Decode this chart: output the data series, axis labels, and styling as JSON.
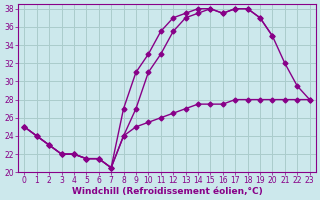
{
  "background_color": "#cce8ec",
  "grid_color": "#aacccc",
  "line_color": "#880088",
  "marker": "D",
  "markersize": 2.5,
  "linewidth": 1.0,
  "xlabel": "Windchill (Refroidissement éolien,°C)",
  "xlabel_fontsize": 6.5,
  "tick_fontsize": 5.5,
  "xlim": [
    -0.5,
    23.5
  ],
  "ylim": [
    20,
    38.5
  ],
  "yticks": [
    20,
    22,
    24,
    26,
    28,
    30,
    32,
    34,
    36,
    38
  ],
  "xticks": [
    0,
    1,
    2,
    3,
    4,
    5,
    6,
    7,
    8,
    9,
    10,
    11,
    12,
    13,
    14,
    15,
    16,
    17,
    18,
    19,
    20,
    21,
    22,
    23
  ],
  "line1_x": [
    0,
    1,
    2,
    3,
    4,
    5,
    6,
    7,
    8,
    9,
    10,
    11,
    12,
    13,
    14,
    15,
    16,
    17,
    18,
    19,
    20,
    21,
    22,
    23
  ],
  "line1_y": [
    25,
    24,
    23,
    22,
    22,
    21.5,
    21.5,
    20.5,
    24,
    25,
    25.5,
    26,
    26.5,
    27,
    27.5,
    27.5,
    27.5,
    28,
    28,
    28,
    28,
    28,
    28,
    28
  ],
  "line2_x": [
    0,
    1,
    2,
    3,
    4,
    5,
    6,
    7,
    8,
    9,
    10,
    11,
    12,
    13,
    14,
    15,
    16,
    17,
    18,
    19,
    20,
    21,
    22,
    23
  ],
  "line2_y": [
    25,
    24,
    23,
    22,
    22,
    21.5,
    21.5,
    20.5,
    27,
    31,
    33,
    35.5,
    37,
    37.5,
    38,
    38,
    37.5,
    38,
    38,
    37,
    35,
    32,
    29.5,
    28
  ],
  "line3_x": [
    0,
    1,
    2,
    3,
    4,
    5,
    6,
    7,
    8,
    9,
    10,
    11,
    12,
    13,
    14,
    15,
    16,
    17,
    18,
    19,
    20
  ],
  "line3_y": [
    25,
    24,
    23,
    22,
    22,
    21.5,
    21.5,
    20.5,
    24,
    27,
    31,
    33,
    35.5,
    37,
    37.5,
    38,
    37.5,
    38,
    38,
    37,
    35
  ]
}
